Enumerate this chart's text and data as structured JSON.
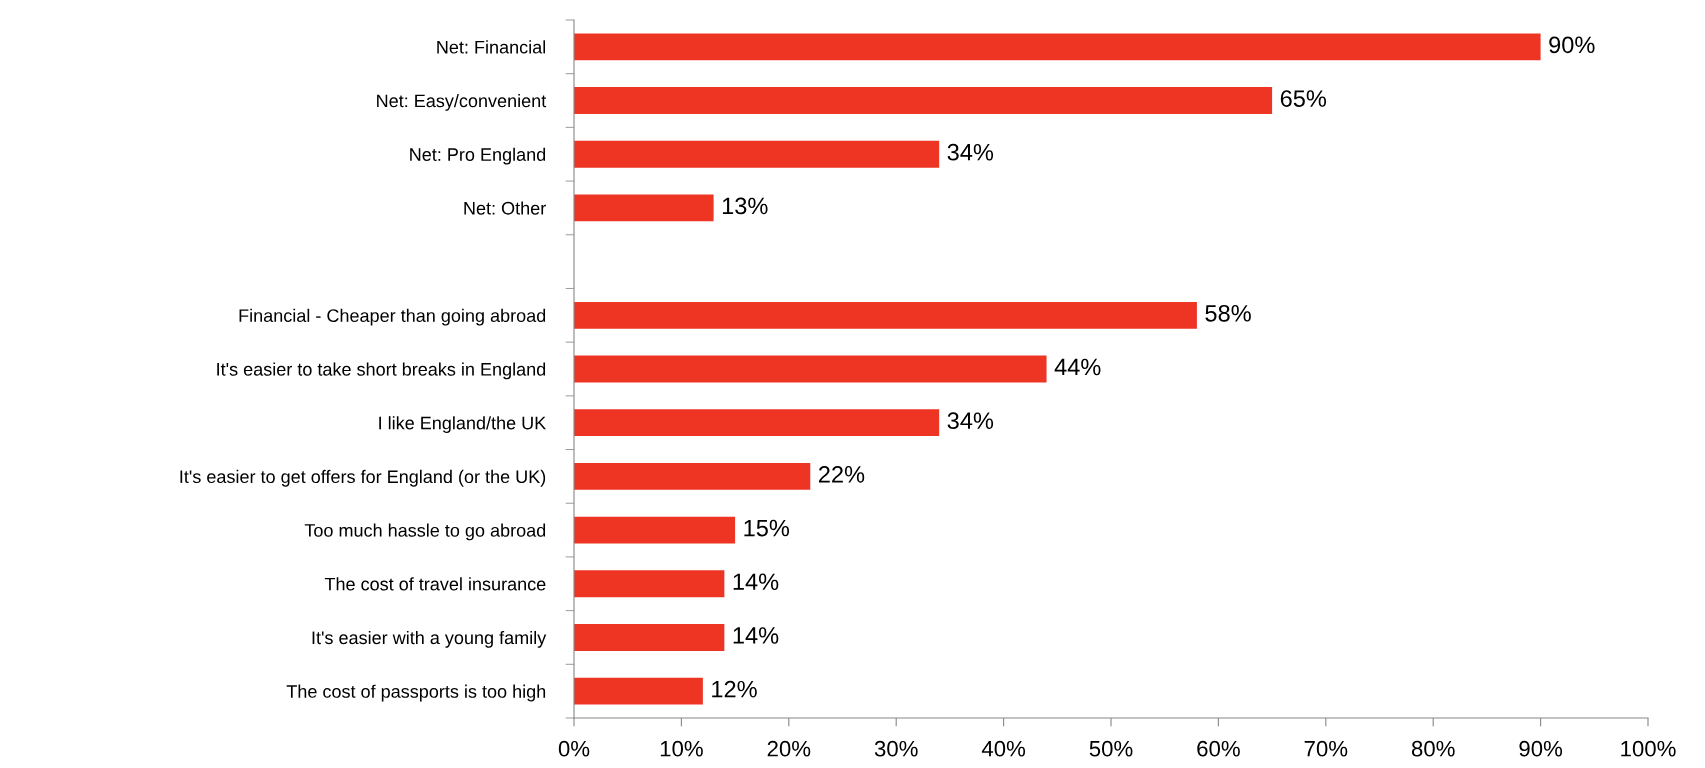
{
  "chart_data": {
    "type": "bar",
    "orientation": "horizontal",
    "categories": [
      "Net: Financial",
      "Net: Easy/convenient",
      "Net: Pro England",
      "Net: Other",
      null,
      "Financial - Cheaper than going abroad",
      "It's easier to take short breaks in England",
      "I like England/the UK",
      "It's easier to get offers for England (or the UK)",
      "Too much hassle to go abroad",
      "The cost of travel insurance",
      "It's easier with a young family",
      "The cost of passports is too high"
    ],
    "values": [
      90,
      65,
      34,
      13,
      null,
      58,
      44,
      34,
      22,
      15,
      14,
      14,
      12
    ],
    "value_labels": [
      "90%",
      "65%",
      "34%",
      "13%",
      null,
      "58%",
      "44%",
      "34%",
      "22%",
      "15%",
      "14%",
      "14%",
      "12%"
    ],
    "color": "#ee3524",
    "xlim": [
      0,
      100
    ],
    "xticks": [
      {
        "value": 0,
        "label": "0%"
      },
      {
        "value": 10,
        "label": "10%"
      },
      {
        "value": 20,
        "label": "20%"
      },
      {
        "value": 30,
        "label": "30%"
      },
      {
        "value": 40,
        "label": "40%"
      },
      {
        "value": 50,
        "label": "50%"
      },
      {
        "value": 60,
        "label": "60%"
      },
      {
        "value": 70,
        "label": "70%"
      },
      {
        "value": 80,
        "label": "80%"
      },
      {
        "value": 90,
        "label": "90%"
      },
      {
        "value": 100,
        "label": "100%"
      }
    ],
    "grid": false,
    "legend": false
  }
}
